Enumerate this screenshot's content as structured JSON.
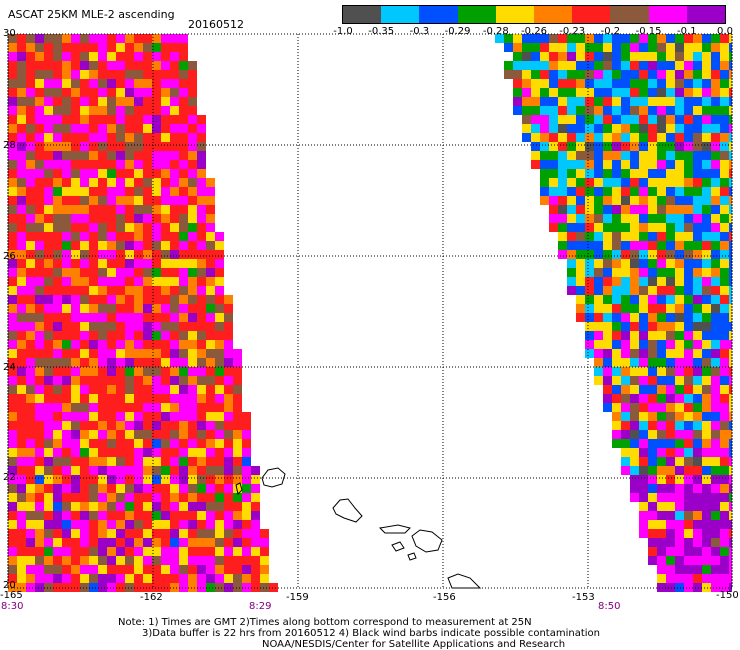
{
  "header": {
    "product": "ASCAT 25KM MLE-2 ascending",
    "date": "20160512"
  },
  "colorbar": {
    "colors": [
      "#505050",
      "#00c8ff",
      "#0050ff",
      "#00a000",
      "#ffdc00",
      "#ff8000",
      "#ff1e1e",
      "#8b5a3c",
      "#ff00ff",
      "#9b00c8"
    ],
    "labels": [
      "-1.0",
      "-0.35",
      "-0.3",
      "-0.29",
      "-0.28",
      "-0.26",
      "-0.23",
      "-0.2",
      "-0.15",
      "-0.1",
      "0.0"
    ]
  },
  "map": {
    "lon_ticks": [
      "-165",
      "-162",
      "-159",
      "-156",
      "-153",
      "-150"
    ],
    "lat_ticks": [
      "30",
      "28",
      "26",
      "24",
      "22",
      "20"
    ],
    "lon_range": [
      -165,
      -150
    ],
    "lat_range": [
      20,
      30
    ],
    "grid": true
  },
  "swath_times": {
    "left_start": "8:30",
    "left_end": "8:29",
    "right": "8:50"
  },
  "notes": {
    "line1": "Note: 1) Times are GMT 2)Times along bottom correspond to measurement at 25N",
    "line2": "3)Data buffer is 22 hrs from 20160512 4) Black wind barbs indicate possible contamination",
    "line3": "NOAA/NESDIS/Center for Satellite Applications and Research"
  }
}
